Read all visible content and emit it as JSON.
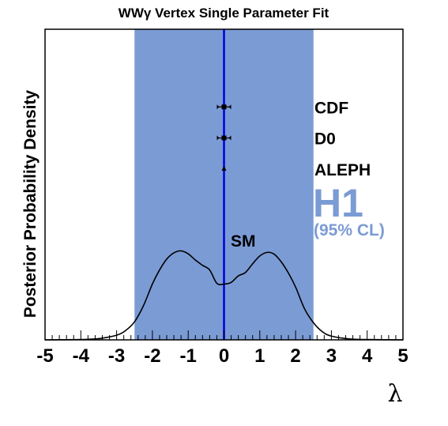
{
  "chart_data": {
    "type": "line",
    "title": "WWγ Vertex Single Parameter Fit",
    "xlabel": "λ",
    "ylabel": "Posterior Probability Density",
    "xlim": [
      -5,
      5
    ],
    "ylim": [
      0,
      1
    ],
    "xticks": [
      "-5",
      "-4",
      "-3",
      "-2",
      "-1",
      "0",
      "1",
      "2",
      "3",
      "4",
      "5"
    ],
    "grid": false,
    "band": {
      "label": "H1",
      "sublabel": "(95% CL)",
      "range": [
        -2.5,
        2.5
      ],
      "color": "#7b9bd4"
    },
    "sm_line": {
      "label": "SM",
      "x": 0,
      "color": "#0000dd"
    },
    "series": [
      {
        "x": [
          -5,
          -4,
          -3.5,
          -3,
          -2.75,
          -2.5,
          -2.25,
          -2,
          -1.8,
          -1.6,
          -1.4,
          -1.2,
          -1.0,
          -0.8,
          -0.6,
          -0.4,
          -0.2,
          0,
          0.2,
          0.4,
          0.6,
          0.8,
          1.0,
          1.2,
          1.4,
          1.6,
          1.8,
          2,
          2.25,
          2.5,
          2.75,
          3,
          3.5,
          4,
          5
        ],
        "values": [
          0.0,
          0.001,
          0.004,
          0.015,
          0.03,
          0.058,
          0.11,
          0.18,
          0.225,
          0.26,
          0.28,
          0.2865,
          0.277,
          0.257,
          0.24,
          0.225,
          0.182,
          0.1795,
          0.185,
          0.206,
          0.217,
          0.245,
          0.27,
          0.2815,
          0.276,
          0.251,
          0.215,
          0.17,
          0.1,
          0.055,
          0.026,
          0.012,
          0.003,
          0.001,
          0.0
        ],
        "color": "#000000"
      }
    ],
    "experiments": [
      {
        "label": "CDF",
        "value": 0.0,
        "y": 0.75,
        "marker": "square"
      },
      {
        "label": "D0",
        "value": 0.0,
        "y": 0.65,
        "marker": "square"
      },
      {
        "label": "ALEPH",
        "value": 0.0,
        "y": 0.55,
        "marker": "triangle"
      }
    ]
  }
}
